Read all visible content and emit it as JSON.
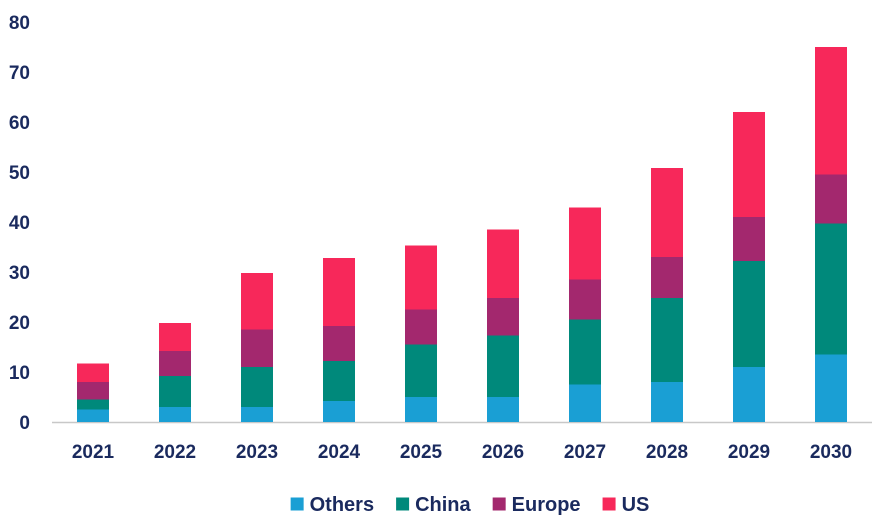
{
  "chart_data": {
    "type": "bar",
    "stacked": true,
    "title": "",
    "xlabel": "",
    "ylabel": "",
    "categories": [
      "2021",
      "2022",
      "2023",
      "2024",
      "2025",
      "2026",
      "2027",
      "2028",
      "2029",
      "2030"
    ],
    "series": [
      {
        "name": "Others",
        "color": "#1a9fd4",
        "values": [
          2.5,
          3.0,
          3.0,
          4.2,
          5.0,
          5.0,
          7.5,
          8.0,
          11.0,
          13.5
        ]
      },
      {
        "name": "China",
        "color": "#00897b",
        "values": [
          2.0,
          6.2,
          8.0,
          8.0,
          10.5,
          12.3,
          13.0,
          16.8,
          21.2,
          26.2
        ]
      },
      {
        "name": "Europe",
        "color": "#a3286e",
        "values": [
          3.5,
          5.0,
          7.5,
          7.0,
          7.0,
          7.5,
          8.0,
          8.2,
          8.8,
          9.8
        ]
      },
      {
        "name": "US",
        "color": "#f7285a",
        "values": [
          3.7,
          5.6,
          11.3,
          13.6,
          12.8,
          13.7,
          14.4,
          17.8,
          21.0,
          25.5
        ]
      }
    ],
    "ylim": [
      0,
      80
    ],
    "yticks": [
      0,
      10,
      20,
      30,
      40,
      50,
      60,
      70,
      80
    ],
    "grid": false,
    "legend_position": "bottom-center"
  }
}
